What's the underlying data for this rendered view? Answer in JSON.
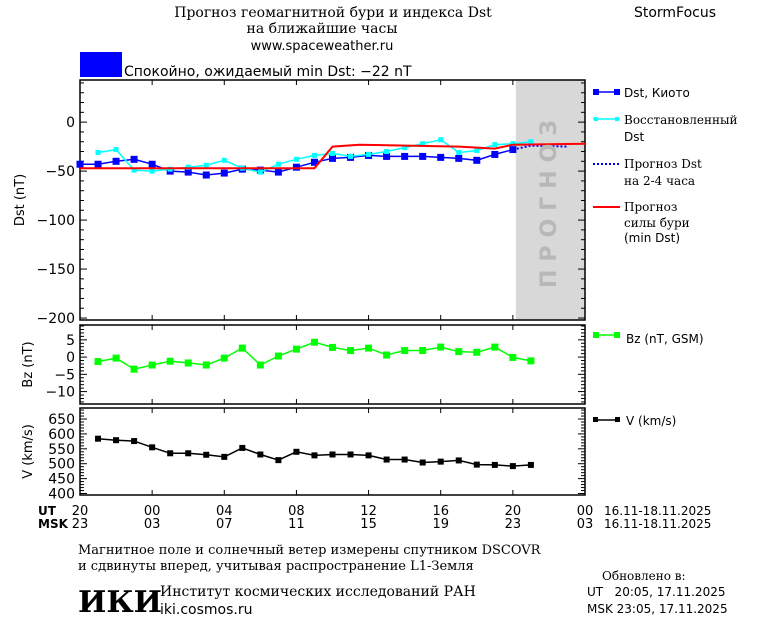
{
  "header": {
    "title_line1": "Прогноз геомагнитной бури и индекса Dst",
    "title_line2": "на ближайшие часы",
    "url": "www.spaceweather.ru",
    "brand": "StormFocus",
    "status_text": "Спокойно, ожидаемый min Dst: −22 nT",
    "status_color": "#0000ff"
  },
  "forecast_zone_label": "ПРОГНОЗ",
  "legend": {
    "dst_kyoto": "Dst, Киото",
    "restored_1": "Восстановленный",
    "restored_2": "Dst",
    "forecast_1": "Прогноз Dst",
    "forecast_2": "на 2-4 часа",
    "storm_1": "Прогноз",
    "storm_2": "силы бури",
    "storm_3": "(min Dst)",
    "bz": "Bz (nT, GSM)",
    "v": "V (km/s)"
  },
  "x_axis": {
    "ut_label": "UT",
    "msk_label": "MSK",
    "ut_ticks": [
      "20",
      "00",
      "04",
      "08",
      "12",
      "16",
      "20",
      "00"
    ],
    "msk_ticks": [
      "23",
      "03",
      "07",
      "11",
      "15",
      "19",
      "23",
      "03"
    ],
    "ut_range": "16.11-18.11.2025",
    "msk_range": "16.11-18.11.2025",
    "range": [
      "16.11 20:00",
      "18.11 00:00"
    ],
    "forecast_from": "17.11 20:10"
  },
  "chart_data": [
    {
      "type": "line",
      "ylabel": "Dst (nT)",
      "ylim": [
        -202,
        43
      ],
      "yticks": [
        0,
        -50,
        -100,
        -150,
        -200
      ],
      "series": [
        {
          "name": "Dst, Киото",
          "color": "#0000ff",
          "marker": "square",
          "x": [
            "16.11 20:00",
            "16.11 21:00",
            "16.11 22:00",
            "16.11 23:00",
            "17.11 00:00",
            "17.11 01:00",
            "17.11 02:00",
            "17.11 03:00",
            "17.11 04:00",
            "17.11 05:00",
            "17.11 06:00",
            "17.11 07:00",
            "17.11 08:00",
            "17.11 09:00",
            "17.11 10:00",
            "17.11 11:00",
            "17.11 12:00",
            "17.11 13:00",
            "17.11 14:00",
            "17.11 15:00",
            "17.11 16:00",
            "17.11 17:00",
            "17.11 18:00",
            "17.11 19:00",
            "17.11 20:00"
          ],
          "y": [
            -43,
            -43,
            -40,
            -38,
            -43,
            -50,
            -51,
            -54,
            -52,
            -48,
            -49,
            -51,
            -46,
            -41,
            -37,
            -36,
            -34,
            -35,
            -35,
            -35,
            -36,
            -37,
            -39,
            -33,
            -28
          ]
        },
        {
          "name": "Восстановленный Dst",
          "color": "#00ffff",
          "marker": "square-small",
          "x": [
            "16.11 21:00",
            "16.11 22:00",
            "16.11 23:00",
            "17.11 00:00",
            "17.11 01:00",
            "17.11 02:00",
            "17.11 03:00",
            "17.11 04:00",
            "17.11 05:00",
            "17.11 06:00",
            "17.11 07:00",
            "17.11 08:00",
            "17.11 09:00",
            "17.11 10:00",
            "17.11 11:00",
            "17.11 12:00",
            "17.11 13:00",
            "17.11 14:00",
            "17.11 15:00",
            "17.11 16:00",
            "17.11 17:00",
            "17.11 18:00",
            "17.11 19:00",
            "17.11 20:00",
            "17.11 21:00"
          ],
          "y": [
            -31,
            -28,
            -49,
            -50,
            -48,
            -46,
            -44,
            -39,
            -47,
            -51,
            -43,
            -38,
            -34,
            -32,
            -35,
            -33,
            -30,
            -26,
            -22,
            -18,
            -31,
            -29,
            -23,
            -22,
            -20
          ]
        },
        {
          "name": "Прогноз Dst на 2-4 часа",
          "color": "#0000ff",
          "style": "dotted",
          "x": [
            "17.11 20:00",
            "17.11 21:00",
            "17.11 23:00"
          ],
          "y": [
            -28,
            -24,
            -25
          ]
        },
        {
          "name": "Прогноз силы бури (min Dst)",
          "color": "#ff0000",
          "style": "step",
          "x": [
            "16.11 20:00",
            "17.11 09:00",
            "17.11 10:00",
            "17.11 11:30",
            "17.11 17:00",
            "17.11 19:00",
            "17.11 20:00",
            "18.11 00:00"
          ],
          "y": [
            -47,
            -47,
            -25,
            -23,
            -25,
            -27,
            -23,
            -22
          ]
        }
      ]
    },
    {
      "type": "line",
      "ylabel": "Bz (nT)",
      "ylim": [
        -13.6,
        9.3
      ],
      "yticks": [
        5,
        0,
        -5,
        -10
      ],
      "series": [
        {
          "name": "Bz (nT, GSM)",
          "color": "#00ff00",
          "marker": "square",
          "x": [
            "16.11 21:00",
            "16.11 22:00",
            "16.11 23:00",
            "17.11 00:00",
            "17.11 01:00",
            "17.11 02:00",
            "17.11 03:00",
            "17.11 04:00",
            "17.11 05:00",
            "17.11 06:00",
            "17.11 07:00",
            "17.11 08:00",
            "17.11 09:00",
            "17.11 10:00",
            "17.11 11:00",
            "17.11 12:00",
            "17.11 13:00",
            "17.11 14:00",
            "17.11 15:00",
            "17.11 16:00",
            "17.11 17:00",
            "17.11 18:00",
            "17.11 19:00",
            "17.11 20:00",
            "17.11 21:00"
          ],
          "y": [
            -1.3,
            -0.3,
            -3.5,
            -2.3,
            -1.2,
            -1.7,
            -2.3,
            -0.3,
            2.6,
            -2.3,
            0.3,
            2.3,
            4.3,
            2.8,
            1.9,
            2.6,
            0.6,
            1.9,
            1.9,
            2.9,
            1.6,
            1.4,
            2.9,
            -0.1,
            -1.1
          ]
        }
      ]
    },
    {
      "type": "line",
      "ylabel": "V (km/s)",
      "ylim": [
        395,
        687
      ],
      "yticks": [
        650,
        600,
        550,
        500,
        450,
        400
      ],
      "series": [
        {
          "name": "V (km/s)",
          "color": "#000000",
          "marker": "square",
          "x": [
            "16.11 21:00",
            "16.11 22:00",
            "16.11 23:00",
            "17.11 00:00",
            "17.11 01:00",
            "17.11 02:00",
            "17.11 03:00",
            "17.11 04:00",
            "17.11 05:00",
            "17.11 06:00",
            "17.11 07:00",
            "17.11 08:00",
            "17.11 09:00",
            "17.11 10:00",
            "17.11 11:00",
            "17.11 12:00",
            "17.11 13:00",
            "17.11 14:00",
            "17.11 15:00",
            "17.11 16:00",
            "17.11 17:00",
            "17.11 18:00",
            "17.11 19:00",
            "17.11 20:00",
            "17.11 21:00"
          ],
          "y": [
            584,
            579,
            576,
            555,
            535,
            535,
            530,
            523,
            553,
            531,
            512,
            540,
            528,
            531,
            531,
            528,
            514,
            514,
            504,
            507,
            511,
            497,
            496,
            492,
            496
          ]
        }
      ]
    }
  ],
  "footer": {
    "note_line1": "Магнитное поле и солнечный ветер измерены спутником DSCOVR",
    "note_line2": "и сдвинуты вперед, учитывая распространение L1-Земля",
    "logo_text": "ИКИ",
    "institute": "Институт космических исследований РАН",
    "site": "iki.cosmos.ru",
    "updated_label": "Обновлено в:",
    "updated_ut": "UT   20:05, 17.11.2025",
    "updated_msk": "MSK 23:05, 17.11.2025"
  }
}
